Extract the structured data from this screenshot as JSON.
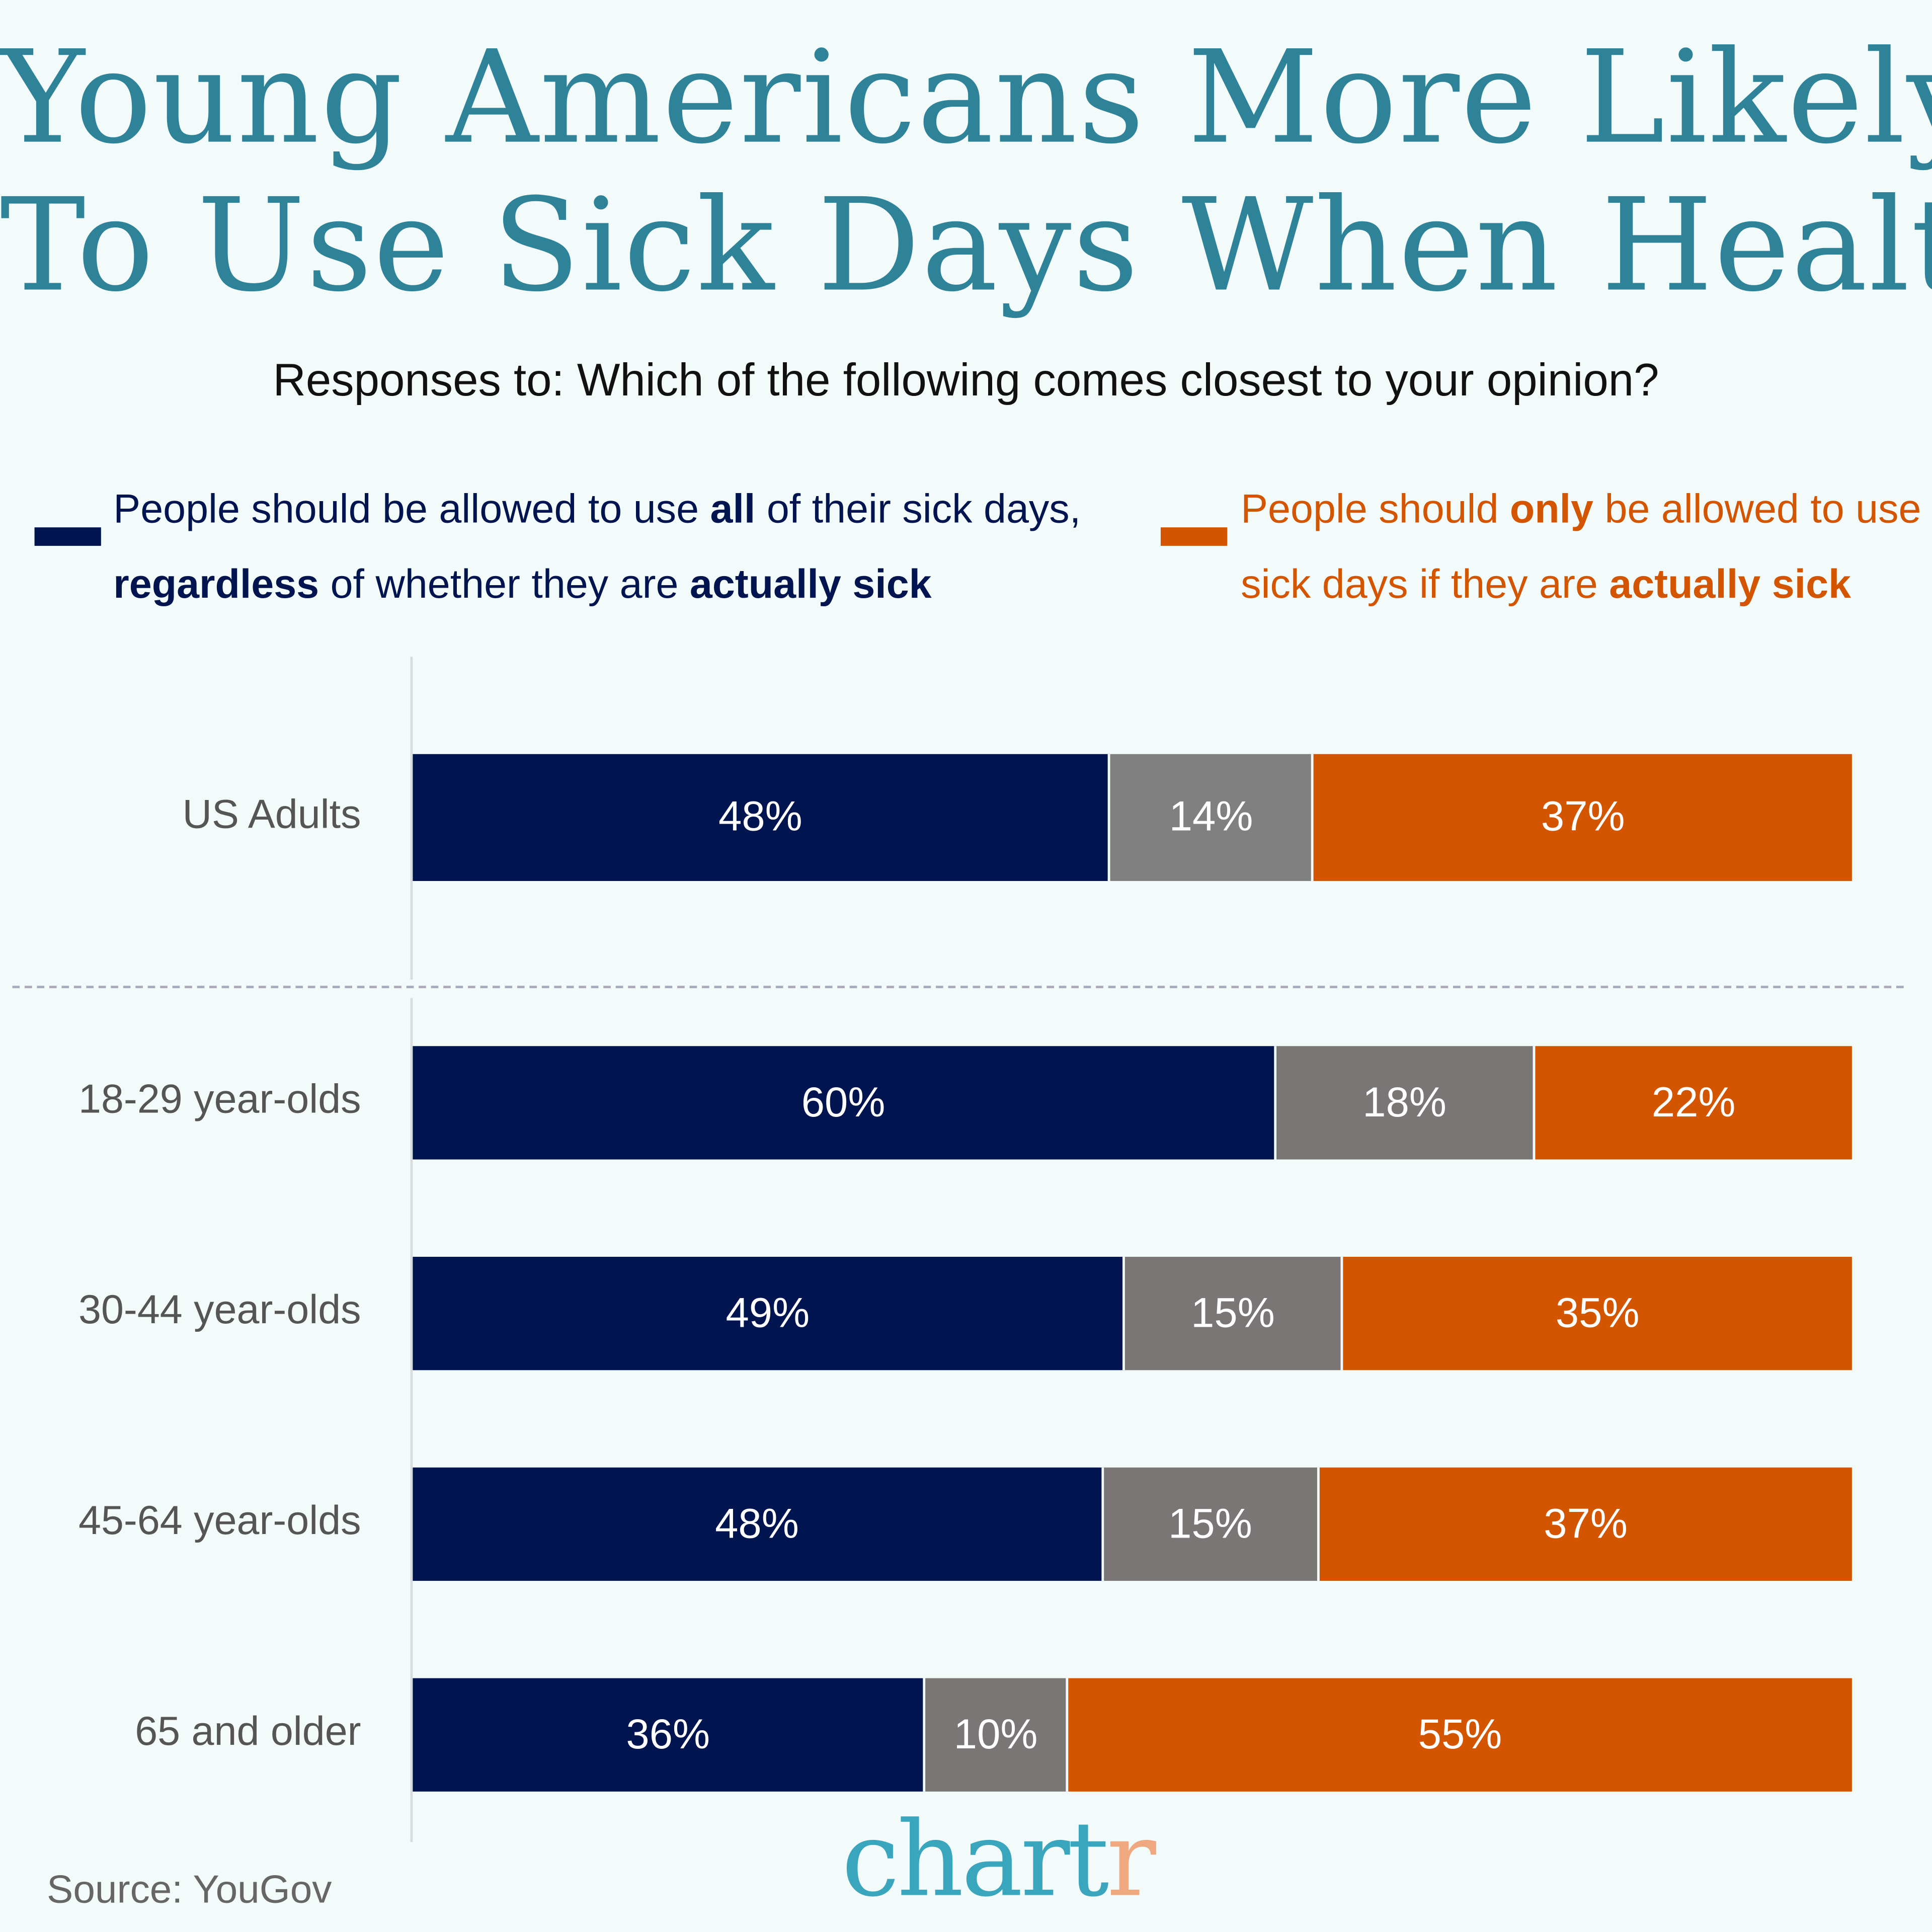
{
  "colors": {
    "navy": "#001450",
    "gray": "#7a7676",
    "orange": "#d45500",
    "title": "#2f8399",
    "background": "#f2fbf9"
  },
  "chart_data": {
    "type": "bar",
    "orientation": "horizontal-stacked",
    "title": [
      "Young Americans More Likely",
      "To Use Sick Days When Healthy"
    ],
    "subtitle": "Responses to: Which of the following comes closest to your opinion?",
    "legend": [
      {
        "text_parts": [
          "People should be allowed to use ",
          "all",
          " of their sick days,",
          "regardless",
          " of whether they are ",
          "actually sick"
        ],
        "color": "#001450"
      },
      {
        "text_parts": [
          "People should ",
          "only",
          " be allowed to use",
          "sick days if they are ",
          "actually sick"
        ],
        "color": "#d45500"
      }
    ],
    "categories": [
      "US Adults",
      "18-29 year-olds",
      "30-44 year-olds",
      "45-64 year-olds",
      "65 and older"
    ],
    "series": [
      {
        "values": [
          48,
          60,
          49,
          48,
          36
        ],
        "color": "#001450"
      },
      {
        "values": [
          14,
          18,
          15,
          15,
          10
        ],
        "color": "#7a7676"
      },
      {
        "values": [
          37,
          22,
          35,
          37,
          55
        ],
        "color": "#d45500"
      }
    ],
    "value_labels": [
      [
        "48%",
        "14%",
        "37%"
      ],
      [
        "60%",
        "18%",
        "22%"
      ],
      [
        "49%",
        "15%",
        "35%"
      ],
      [
        "48%",
        "15%",
        "37%"
      ],
      [
        "36%",
        "10%",
        "55%"
      ]
    ]
  },
  "footer": {
    "source": "Source: YouGov",
    "logo_main": "chart",
    "logo_accent": "r"
  }
}
